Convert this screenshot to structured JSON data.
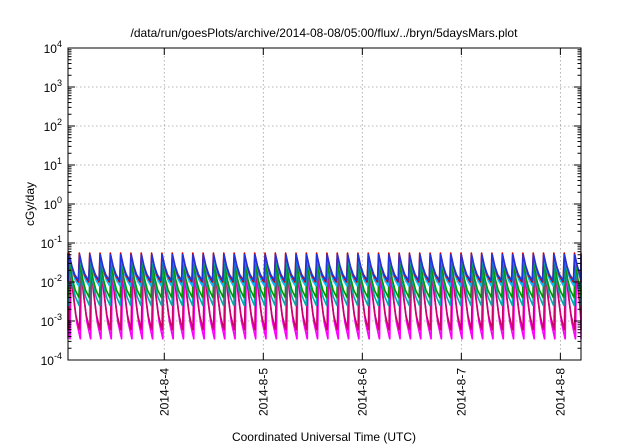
{
  "chart_data": {
    "type": "line",
    "title": "/data/run/goesPlots/archive/2014-08-08/05:00/flux/../bryn/5daysMars.plot",
    "xlabel": "Coordinated Universal Time (UTC)",
    "ylabel": "cGy/day",
    "y_scale": "log",
    "ylim": [
      0.0001,
      10000
    ],
    "y_ticks": [
      {
        "value": 0.0001,
        "base": "10",
        "exp": "-4"
      },
      {
        "value": 0.001,
        "base": "10",
        "exp": "-3"
      },
      {
        "value": 0.01,
        "base": "10",
        "exp": "-2"
      },
      {
        "value": 0.1,
        "base": "10",
        "exp": "-1"
      },
      {
        "value": 1,
        "base": "10",
        "exp": "0"
      },
      {
        "value": 10,
        "base": "10",
        "exp": "1"
      },
      {
        "value": 100,
        "base": "10",
        "exp": "2"
      },
      {
        "value": 1000,
        "base": "10",
        "exp": "3"
      },
      {
        "value": 10000,
        "base": "10",
        "exp": "4"
      }
    ],
    "xlim": [
      "2014-08-03T00:40",
      "2014-08-08T05:00"
    ],
    "x_ticks": [
      {
        "value": "2014-08-04T00:00",
        "label": "2014-8-4"
      },
      {
        "value": "2014-08-05T00:00",
        "label": "2014-8-5"
      },
      {
        "value": "2014-08-06T00:00",
        "label": "2014-8-6"
      },
      {
        "value": "2014-08-07T00:00",
        "label": "2014-8-7"
      },
      {
        "value": "2014-08-08T00:00",
        "label": "2014-8-8"
      }
    ],
    "grid": true,
    "sawtooth_period_hours": 2.5,
    "series": [
      {
        "color": "#ff00ff",
        "peak": 0.028,
        "trough": 0.00035,
        "lag_hours": 0.5
      },
      {
        "color": "#cc0066",
        "peak": 0.03,
        "trough": 0.0006,
        "lag_hours": 0.3
      },
      {
        "color": "#00aaaa",
        "peak": 0.025,
        "trough": 0.0025,
        "lag_hours": 0.2
      },
      {
        "color": "#009900",
        "peak": 0.03,
        "trough": 0.004,
        "lag_hours": 0.15
      },
      {
        "color": "#00bbff",
        "peak": 0.045,
        "trough": 0.008,
        "lag_hours": 0.1
      },
      {
        "color": "#cc0000",
        "peak": 0.055,
        "trough": 0.01,
        "lag_hours": 0.0
      },
      {
        "color": "#2233dd",
        "peak": 0.05,
        "trough": 0.011,
        "lag_hours": 0.05
      }
    ]
  }
}
